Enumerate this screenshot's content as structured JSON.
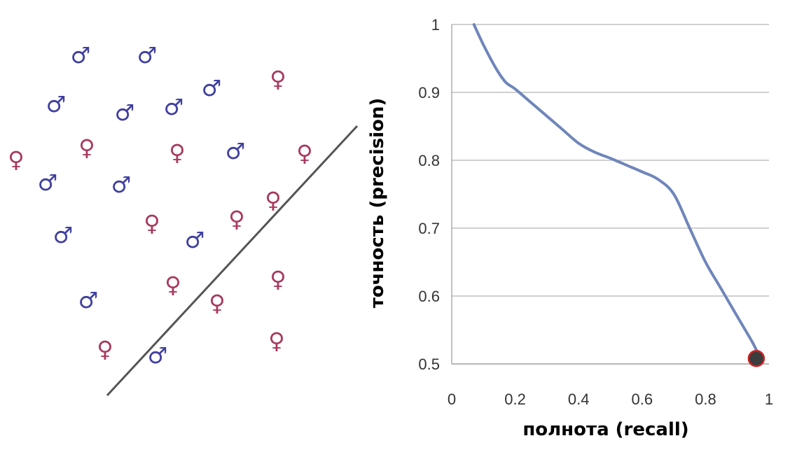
{
  "colors": {
    "male": "#3f3fa0",
    "female": "#a8385e",
    "curve": "#6f86bb",
    "grid": "#b5b5b5",
    "separator": "#555555",
    "marker_fill": "#3c3c3c",
    "marker_stroke": "#cc2222"
  },
  "scatter": {
    "male_symbol": "♂",
    "female_symbol": "♀"
  },
  "chart_data": {
    "type": "line",
    "xlabel": "полнота (recall)",
    "ylabel": "точность (precision)",
    "xlim": [
      0,
      1
    ],
    "ylim": [
      0.5,
      1
    ],
    "x_ticks": [
      "0",
      "0.2",
      "0.4",
      "0.6",
      "0.8",
      "1"
    ],
    "y_ticks": [
      "0.5",
      "0.6",
      "0.7",
      "0.8",
      "0.9",
      "1"
    ],
    "grid": "horizontal",
    "series": [
      {
        "x": [
          0.07,
          0.1,
          0.14,
          0.17,
          0.2,
          0.25,
          0.3,
          0.35,
          0.4,
          0.45,
          0.5,
          0.55,
          0.6,
          0.65,
          0.7,
          0.75,
          0.8,
          0.85,
          0.9,
          0.95,
          0.97
        ],
        "y": [
          1.0,
          0.97,
          0.935,
          0.915,
          0.905,
          0.885,
          0.865,
          0.845,
          0.825,
          0.812,
          0.803,
          0.793,
          0.783,
          0.772,
          0.75,
          0.7,
          0.65,
          0.61,
          0.57,
          0.53,
          0.51
        ]
      }
    ],
    "highlight_point": {
      "x": 0.96,
      "y": 0.508
    }
  }
}
